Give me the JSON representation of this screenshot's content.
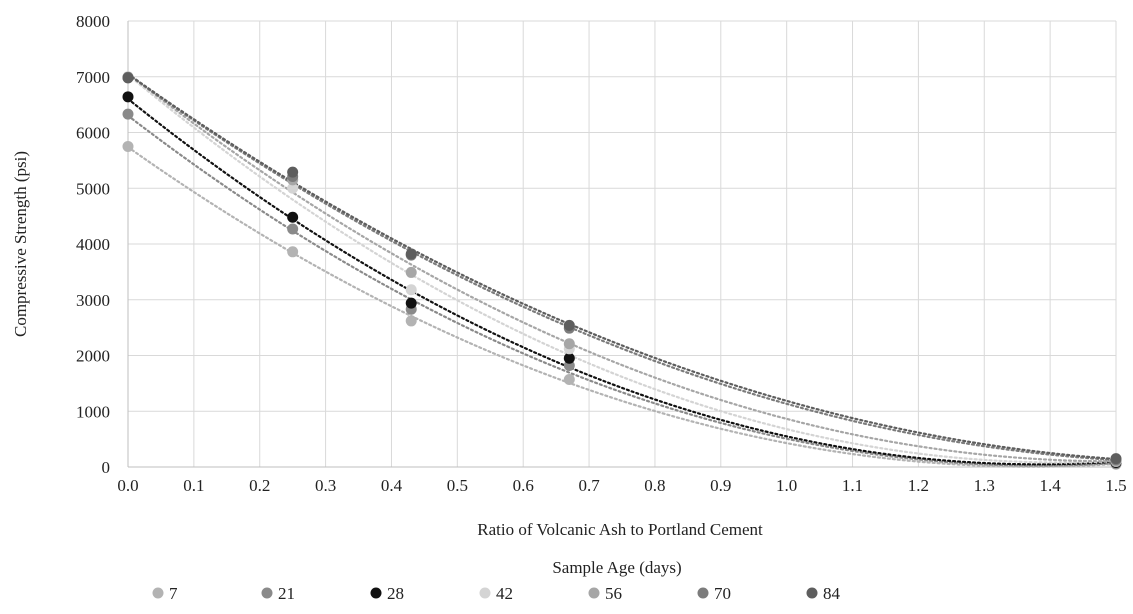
{
  "chart_data": {
    "type": "scatter",
    "title": "",
    "xlabel": "Ratio of Volcanic Ash to Portland Cement",
    "ylabel": "Compressive Strength (psi)",
    "xlim": [
      0.0,
      1.5
    ],
    "ylim": [
      0,
      8000
    ],
    "x_ticks": [
      "0.0",
      "0.1",
      "0.2",
      "0.3",
      "0.4",
      "0.5",
      "0.6",
      "0.7",
      "0.8",
      "0.9",
      "1.0",
      "1.1",
      "1.2",
      "1.3",
      "1.4",
      "1.5"
    ],
    "y_ticks": [
      "0",
      "1000",
      "2000",
      "3000",
      "4000",
      "5000",
      "6000",
      "7000",
      "8000"
    ],
    "grid": true,
    "legend_title": "Sample Age (days)",
    "legend_position": "bottom",
    "trendline": "polynomial (dotted)",
    "x": [
      0.0,
      0.25,
      0.43,
      0.67,
      1.5
    ],
    "series": [
      {
        "name": "7",
        "color": "#b3b3b3",
        "values": [
          5750,
          3860,
          2620,
          1570,
          50
        ]
      },
      {
        "name": "21",
        "color": "#8a8a8a",
        "values": [
          6330,
          4270,
          2830,
          1820,
          60
        ]
      },
      {
        "name": "28",
        "color": "#111111",
        "values": [
          6640,
          4480,
          2940,
          1950,
          80
        ]
      },
      {
        "name": "42",
        "color": "#d4d4d4",
        "values": [
          7000,
          5000,
          3180,
          2120,
          100
        ]
      },
      {
        "name": "56",
        "color": "#a6a6a6",
        "values": [
          6980,
          5150,
          3490,
          2210,
          110
        ]
      },
      {
        "name": "70",
        "color": "#7c7c7c",
        "values": [
          6990,
          5210,
          3800,
          2490,
          130
        ]
      },
      {
        "name": "84",
        "color": "#5e5e5e",
        "values": [
          6980,
          5290,
          3820,
          2540,
          150
        ]
      }
    ]
  }
}
